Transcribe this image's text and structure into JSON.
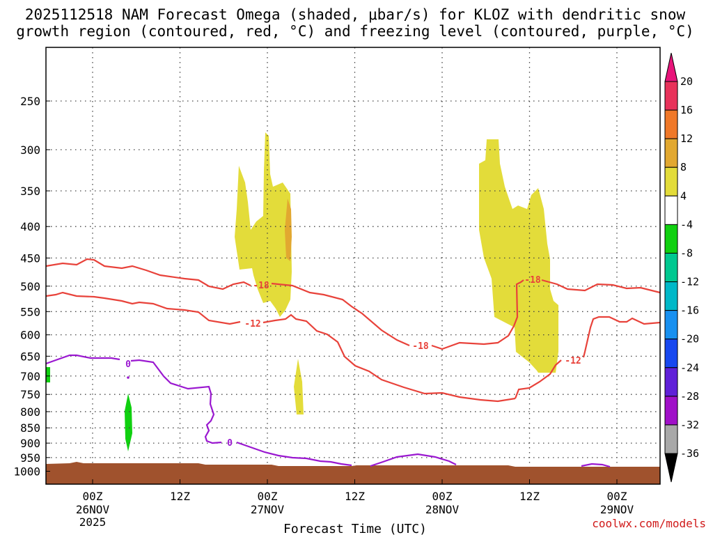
{
  "chart_data": {
    "type": "contour",
    "title_lines": [
      "2025112518 NAM Forecast Omega (shaded, μbar/s) for KLOZ with dendritic snow",
      "growth region (contoured, red, °C) and freezing level (contoured, purple, °C)"
    ],
    "xlabel": "Forecast Time (UTC)",
    "credit": "coolwx.com/models",
    "y_axis": {
      "ticks": [
        "250",
        "300",
        "350",
        "400",
        "450",
        "500",
        "550",
        "600",
        "650",
        "700",
        "750",
        "800",
        "850",
        "900",
        "950",
        "1000"
      ],
      "direction": "pressure-decreasing-upward"
    },
    "x_axis": {
      "ticks": [
        {
          "time": 6,
          "label": "00Z",
          "sub": [
            "26NOV",
            "2025"
          ]
        },
        {
          "time": 18,
          "label": "12Z",
          "sub": []
        },
        {
          "time": 30,
          "label": "00Z",
          "sub": [
            "27NOV"
          ]
        },
        {
          "time": 42,
          "label": "12Z",
          "sub": []
        },
        {
          "time": 54,
          "label": "00Z",
          "sub": [
            "28NOV"
          ]
        },
        {
          "time": 66,
          "label": "12Z",
          "sub": []
        },
        {
          "time": 78,
          "label": "00Z",
          "sub": [
            "29NOV"
          ]
        }
      ],
      "range": [
        0,
        84
      ]
    },
    "colorbar": {
      "labels": [
        "20",
        "16",
        "12",
        "8",
        "4",
        "-4",
        "-8",
        "-12",
        "-16",
        "-20",
        "-24",
        "-28",
        "-32",
        "-36"
      ],
      "colors": [
        "#e8325a",
        "#f07828",
        "#e2a830",
        "#e3dc3a",
        "#ffffff",
        "#10d010",
        "#00c890",
        "#00b8c8",
        "#1890f0",
        "#1848f0",
        "#6020d8",
        "#a010c8",
        "#a8a8a8"
      ],
      "top_color": "#e8147a",
      "bottom_color": "#000000"
    },
    "contours": {
      "red": [
        {
          "label": "-18",
          "color": "#e8423a"
        },
        {
          "label": "-18",
          "color": "#e8423a"
        },
        {
          "label": "-18",
          "color": "#e8423a"
        },
        {
          "label": "-12",
          "color": "#e8423a"
        },
        {
          "label": "-12",
          "color": "#e8423a"
        }
      ],
      "purple": [
        {
          "label": "0",
          "color": "#9a18d0"
        },
        {
          "label": "0",
          "color": "#9a18d0"
        }
      ]
    },
    "terrain_color": "#a0522d",
    "shading": {
      "omega_4_8_color": "#e3dc3a",
      "omega_8_12_color": "#e2a830",
      "omega_-4_-8_color": "#10d010"
    }
  }
}
